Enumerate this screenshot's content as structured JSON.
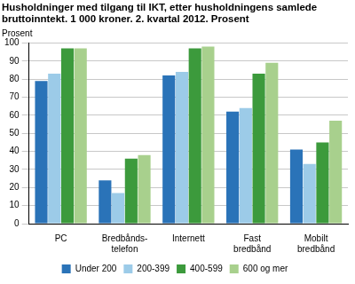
{
  "chart_data": {
    "type": "bar",
    "title": "Husholdninger med tilgang til IKT, etter husholdningens samlede\nbruttoinntekt. 1 000 kroner. 2. kvartal 2012. Prosent",
    "ylabel": "Prosent",
    "categories": [
      "PC",
      "Bredbånds-\ntelefon",
      "Internett",
      "Fast\nbredbånd",
      "Mobilt\nbredbånd"
    ],
    "series": [
      {
        "name": "Under 200",
        "color": "#2a73b8",
        "values": [
          79,
          24,
          82,
          62,
          41
        ]
      },
      {
        "name": "200-399",
        "color": "#9ccbe8",
        "values": [
          83,
          17,
          84,
          64,
          33
        ]
      },
      {
        "name": "400-599",
        "color": "#3c9a3c",
        "values": [
          97,
          36,
          97,
          83,
          45
        ]
      },
      {
        "name": "600 og mer",
        "color": "#a8d08d",
        "values": [
          97,
          38,
          98,
          89,
          57
        ]
      }
    ],
    "ylim": [
      0,
      100
    ],
    "yticks": [
      0,
      10,
      20,
      30,
      40,
      50,
      60,
      70,
      80,
      90,
      100
    ],
    "grid": true,
    "legend": "bottom"
  }
}
